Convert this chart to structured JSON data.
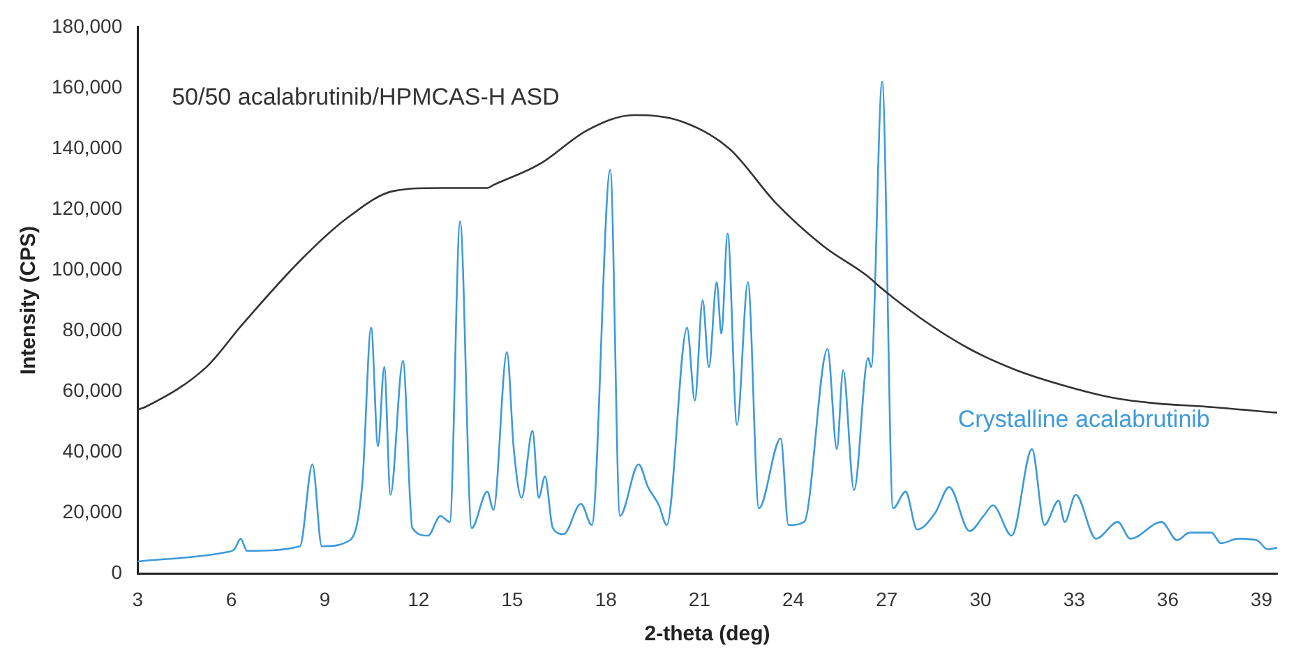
{
  "chart_data": {
    "type": "line",
    "xlabel": "2-theta (deg)",
    "ylabel": "Intensity (CPS)",
    "xlim": [
      3,
      39.5
    ],
    "xticks": [
      3,
      6,
      9,
      12,
      15,
      18,
      21,
      24,
      27,
      30,
      33,
      36,
      39
    ],
    "ylim": [
      0,
      180000
    ],
    "yticks": [
      {
        "value": 0,
        "label": "0"
      },
      {
        "value": 20000,
        "label": "20,000"
      },
      {
        "value": 40000,
        "label": "40,000"
      },
      {
        "value": 60000,
        "label": "60,000"
      },
      {
        "value": 80000,
        "label": "80,000"
      },
      {
        "value": 100000,
        "label": "100,000"
      },
      {
        "value": 120000,
        "label": "120,000"
      },
      {
        "value": 140000,
        "label": "140,000"
      },
      {
        "value": 160000,
        "label": "160,000"
      },
      {
        "value": 180000,
        "label": "180,000"
      }
    ],
    "grid": false,
    "legend": false,
    "marker": "none",
    "line_style": "solid",
    "series": [
      {
        "name": "50/50 acalabrutinib/HPMCAS-H ASD",
        "color": "#333333",
        "x": [
          3,
          3.27,
          5.2,
          6.35,
          8.2,
          9.7,
          11.2,
          12.7,
          14.2,
          14.4,
          15.9,
          17.4,
          18.9,
          20.4,
          21.95,
          23.45,
          24.95,
          26.5,
          26.6,
          28.1,
          29.65,
          31.15,
          32.65,
          34.2,
          35.7,
          37.2,
          39.5
        ],
        "values": [
          54000,
          55000,
          68000,
          82000,
          103000,
          117000,
          126000,
          127000,
          127000,
          128000,
          135000,
          146000,
          151000,
          149000,
          140000,
          122000,
          108000,
          97000,
          96000,
          84000,
          74000,
          67000,
          62000,
          58000,
          56000,
          55000,
          53000
        ]
      },
      {
        "name": "Crystalline acalabrutinib",
        "color": "#3d9ad9",
        "x": [
          3,
          5.8,
          6.1,
          6.3,
          6.5,
          8.2,
          8.6,
          8.9,
          9.8,
          10.2,
          10.48,
          10.7,
          10.9,
          11.1,
          11.5,
          11.8,
          12.3,
          12.7,
          13.0,
          13.33,
          13.7,
          14.2,
          14.4,
          14.83,
          15.05,
          15.3,
          15.65,
          15.85,
          16.05,
          16.3,
          16.65,
          17.2,
          17.55,
          18.14,
          18.45,
          19.05,
          19.35,
          19.7,
          19.95,
          20.6,
          20.85,
          21.1,
          21.3,
          21.55,
          21.7,
          21.9,
          22.2,
          22.55,
          22.9,
          23.6,
          23.85,
          24.35,
          25.1,
          25.4,
          25.6,
          25.95,
          26.4,
          26.5,
          26.85,
          27.2,
          27.6,
          27.97,
          28.55,
          29.0,
          29.65,
          30.1,
          30.4,
          31.0,
          31.65,
          32.05,
          32.5,
          32.7,
          33.05,
          33.7,
          34.4,
          34.8,
          35.8,
          36.3,
          36.7,
          37.4,
          37.7,
          38.25,
          38.85,
          39.2,
          39.5
        ],
        "values": [
          4000,
          7000,
          8000,
          11500,
          7500,
          9000,
          36000,
          9000,
          11000,
          30000,
          81000,
          42000,
          68000,
          26000,
          70000,
          15000,
          12500,
          19000,
          17000,
          116000,
          15000,
          27000,
          21000,
          73000,
          41000,
          25000,
          47000,
          25000,
          32000,
          15000,
          13000,
          23000,
          16000,
          133000,
          19000,
          36000,
          28500,
          22500,
          16000,
          81000,
          57000,
          90000,
          68000,
          96000,
          79000,
          112000,
          49000,
          96000,
          21500,
          44500,
          16000,
          17000,
          74000,
          41000,
          67000,
          27500,
          71000,
          68000,
          162000,
          21500,
          27000,
          14500,
          20000,
          28500,
          14000,
          19000,
          22500,
          12500,
          41000,
          16000,
          24000,
          17000,
          26000,
          11500,
          17000,
          11500,
          17000,
          11000,
          13500,
          13500,
          10000,
          11500,
          11000,
          8000,
          8500
        ]
      }
    ]
  }
}
